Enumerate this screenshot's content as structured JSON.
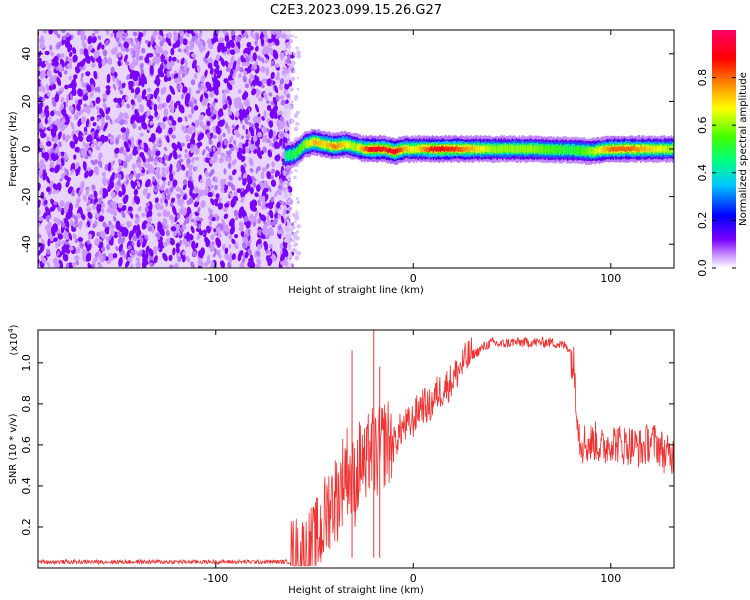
{
  "title": "C2E3.2023.099.15.26.G27",
  "chart_data": [
    {
      "type": "heatmap",
      "xlabel": "Height of straight line (km)",
      "ylabel": "Frequency (Hz)",
      "xlim": [
        -190,
        132
      ],
      "ylim": [
        -50,
        50
      ],
      "x_ticks": [
        -100,
        0,
        100
      ],
      "x_tick_labels": [
        "-100",
        "0",
        "100"
      ],
      "y_ticks": [
        -40,
        -20,
        0,
        20,
        40
      ],
      "y_tick_labels": [
        "-40",
        "-20",
        "0",
        "20",
        "40"
      ],
      "noise_region_x": [
        -190,
        -62
      ],
      "signal_track": {
        "x": [
          -65,
          -60,
          -55,
          -50,
          -45,
          -40,
          -35,
          -30,
          -25,
          -20,
          -15,
          -10,
          -5,
          0,
          10,
          20,
          40,
          60,
          80,
          90,
          100,
          110,
          120,
          132
        ],
        "freq": [
          -3,
          -2,
          2,
          3,
          2,
          1,
          2,
          1,
          0,
          0,
          0,
          -1,
          0,
          0,
          0,
          0,
          0,
          0,
          -0.5,
          -1,
          0,
          0,
          0,
          0
        ],
        "peak_amplitude": [
          0.45,
          0.5,
          0.6,
          0.75,
          0.7,
          0.8,
          0.7,
          0.6,
          0.8,
          0.95,
          0.85,
          0.95,
          0.75,
          0.65,
          0.9,
          0.85,
          0.6,
          0.6,
          0.5,
          0.6,
          0.8,
          0.8,
          0.7,
          0.6
        ]
      },
      "colorbar": {
        "label": "Normalized spectral amplitude",
        "range": [
          0,
          1
        ],
        "ticks": [
          0.0,
          0.2,
          0.4,
          0.6,
          0.8
        ],
        "tick_labels": [
          "0.0",
          "0.2",
          "0.4",
          "0.6",
          "0.8"
        ],
        "colors": [
          "#ffffff",
          "#cc99ff",
          "#7a00ff",
          "#0000ff",
          "#00c8ff",
          "#00ff80",
          "#40ff00",
          "#ffff00",
          "#ff8000",
          "#ff0000",
          "#ff0066"
        ]
      },
      "colors": {
        "noise": "#7a00ff",
        "noise_light": "#cc99ff"
      }
    },
    {
      "type": "line",
      "xlabel": "Height of straight line (km)",
      "ylabel": "SNR (10 * v/v)",
      "y_multiplier": "(x10",
      "y_multiplier_exp": "4",
      "y_multiplier_close": ")",
      "xlim": [
        -190,
        132
      ],
      "ylim": [
        0,
        1.16
      ],
      "x_ticks": [
        -100,
        0,
        100
      ],
      "x_tick_labels": [
        "-100",
        "0",
        "100"
      ],
      "y_ticks": [
        0.2,
        0.4,
        0.6,
        0.8,
        1.0
      ],
      "y_tick_labels": [
        "0.2",
        "0.4",
        "0.6",
        "0.8",
        "1.0"
      ],
      "series": [
        {
          "color": "#ee3333",
          "x": [
            -190,
            -120,
            -62,
            -55,
            -50,
            -46,
            -42,
            -38,
            -34,
            -30,
            -26,
            -24,
            -22,
            -20,
            -18,
            -14,
            -10,
            -6,
            -2,
            0,
            4,
            8,
            12,
            16,
            20,
            24,
            28,
            32,
            36,
            40,
            44,
            50,
            60,
            70,
            78,
            80,
            82,
            84,
            88,
            92,
            96,
            100,
            106,
            110,
            116,
            120,
            124,
            128,
            132
          ],
          "y": [
            0.03,
            0.03,
            0.03,
            0.05,
            0.1,
            0.2,
            0.32,
            0.35,
            0.5,
            0.4,
            0.55,
            0.45,
            0.6,
            0.55,
            0.55,
            0.62,
            0.6,
            0.68,
            0.7,
            0.72,
            0.8,
            0.78,
            0.85,
            0.88,
            0.92,
            0.98,
            1.03,
            1.05,
            1.08,
            1.1,
            1.09,
            1.1,
            1.1,
            1.1,
            1.08,
            1.05,
            0.92,
            0.65,
            0.6,
            0.62,
            0.58,
            0.62,
            0.6,
            0.6,
            0.58,
            0.62,
            0.6,
            0.55,
            0.55
          ]
        }
      ],
      "spikes": {
        "x": [
          -31,
          -20,
          -17
        ],
        "y": [
          1.06,
          1.16,
          0.98
        ]
      }
    }
  ]
}
